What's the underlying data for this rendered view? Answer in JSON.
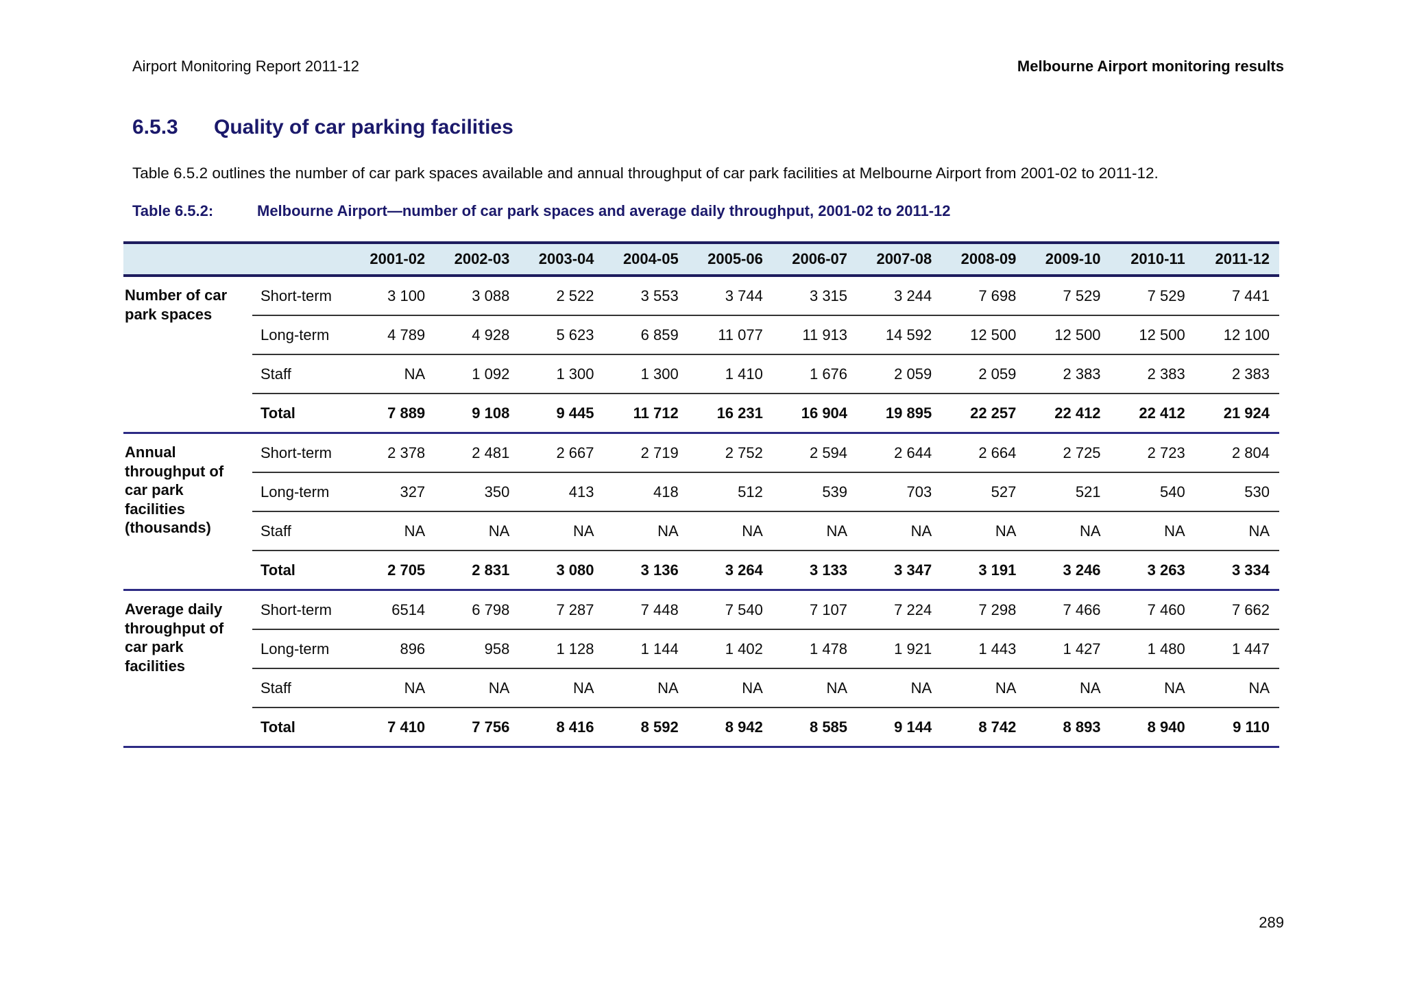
{
  "page": {
    "header_left": "Airport Monitoring Report 2011-12",
    "header_right": "Melbourne Airport monitoring results",
    "section_number": "6.5.3",
    "section_title": "Quality of car parking facilities",
    "intro": "Table 6.5.2 outlines the number of car park spaces available and annual throughput of car park facilities at Melbourne Airport from 2001-02 to 2011-12.",
    "caption_label": "Table 6.5.2:",
    "caption_text": "Melbourne Airport—number of car park spaces and average daily throughput, 2001-02 to 2011-12",
    "page_number": "289"
  },
  "colors": {
    "heading_navy": "#1b196b",
    "table_navy_line": "#2d2b84",
    "header_band_bg": "#daeaf2",
    "thin_row_line": "#333333"
  },
  "table": {
    "year_columns": [
      "2001-02",
      "2002-03",
      "2003-04",
      "2004-05",
      "2005-06",
      "2006-07",
      "2007-08",
      "2008-09",
      "2009-10",
      "2010-11",
      "2011-12"
    ],
    "groups": [
      {
        "label": "Number of car park spaces",
        "rows": [
          {
            "label": "Short-term",
            "total": false,
            "values": [
              "3 100",
              "3 088",
              "2 522",
              "3 553",
              "3 744",
              "3 315",
              "3 244",
              "7 698",
              "7 529",
              "7 529",
              "7 441"
            ]
          },
          {
            "label": "Long-term",
            "total": false,
            "values": [
              "4 789",
              "4 928",
              "5 623",
              "6 859",
              "11 077",
              "11 913",
              "14 592",
              "12 500",
              "12 500",
              "12 500",
              "12 100"
            ]
          },
          {
            "label": "Staff",
            "total": false,
            "values": [
              "NA",
              "1 092",
              "1 300",
              "1 300",
              "1 410",
              "1 676",
              "2 059",
              "2 059",
              "2 383",
              "2 383",
              "2 383"
            ]
          },
          {
            "label": "Total",
            "total": true,
            "values": [
              "7 889",
              "9 108",
              "9 445",
              "11 712",
              "16 231",
              "16 904",
              "19 895",
              "22 257",
              "22 412",
              "22 412",
              "21 924"
            ]
          }
        ]
      },
      {
        "label": "Annual throughput of car park facilities (thousands)",
        "rows": [
          {
            "label": "Short-term",
            "total": false,
            "values": [
              "2 378",
              "2 481",
              "2 667",
              "2 719",
              "2 752",
              "2 594",
              "2 644",
              "2 664",
              "2 725",
              "2 723",
              "2 804"
            ]
          },
          {
            "label": "Long-term",
            "total": false,
            "values": [
              "327",
              "350",
              "413",
              "418",
              "512",
              "539",
              "703",
              "527",
              "521",
              "540",
              "530"
            ]
          },
          {
            "label": "Staff",
            "total": false,
            "values": [
              "NA",
              "NA",
              "NA",
              "NA",
              "NA",
              "NA",
              "NA",
              "NA",
              "NA",
              "NA",
              "NA"
            ]
          },
          {
            "label": "Total",
            "total": true,
            "values": [
              "2 705",
              "2 831",
              "3 080",
              "3 136",
              "3 264",
              "3 133",
              "3 347",
              "3 191",
              "3 246",
              "3 263",
              "3 334"
            ]
          }
        ]
      },
      {
        "label": "Average daily throughput of car park facilities",
        "rows": [
          {
            "label": "Short-term",
            "total": false,
            "values": [
              "6514",
              "6 798",
              "7 287",
              "7 448",
              "7 540",
              "7 107",
              "7 224",
              "7 298",
              "7 466",
              "7 460",
              "7 662"
            ]
          },
          {
            "label": "Long-term",
            "total": false,
            "values": [
              "896",
              "958",
              "1 128",
              "1 144",
              "1 402",
              "1 478",
              "1 921",
              "1 443",
              "1 427",
              "1 480",
              "1 447"
            ]
          },
          {
            "label": "Staff",
            "total": false,
            "values": [
              "NA",
              "NA",
              "NA",
              "NA",
              "NA",
              "NA",
              "NA",
              "NA",
              "NA",
              "NA",
              "NA"
            ]
          },
          {
            "label": "Total",
            "total": true,
            "values": [
              "7 410",
              "7 756",
              "8 416",
              "8 592",
              "8 942",
              "8 585",
              "9 144",
              "8 742",
              "8 893",
              "8 940",
              "9 110"
            ]
          }
        ]
      }
    ]
  }
}
